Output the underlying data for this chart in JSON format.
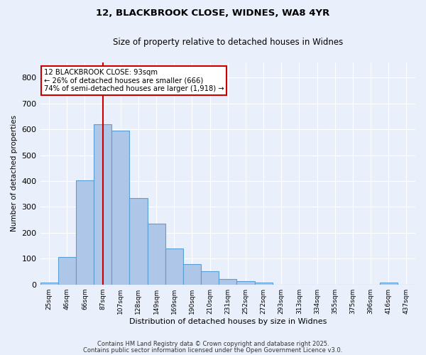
{
  "title1": "12, BLACKBROOK CLOSE, WIDNES, WA8 4YR",
  "title2": "Size of property relative to detached houses in Widnes",
  "xlabel": "Distribution of detached houses by size in Widnes",
  "ylabel": "Number of detached properties",
  "bar_labels": [
    "25sqm",
    "46sqm",
    "66sqm",
    "87sqm",
    "107sqm",
    "128sqm",
    "149sqm",
    "169sqm",
    "190sqm",
    "210sqm",
    "231sqm",
    "252sqm",
    "272sqm",
    "293sqm",
    "313sqm",
    "334sqm",
    "355sqm",
    "375sqm",
    "396sqm",
    "416sqm",
    "437sqm"
  ],
  "bar_values": [
    7,
    107,
    403,
    620,
    596,
    333,
    234,
    138,
    78,
    52,
    20,
    13,
    7,
    0,
    0,
    0,
    0,
    0,
    0,
    8,
    0
  ],
  "bar_color": "#aec6e8",
  "bar_edge_color": "#5a9fd4",
  "background_color": "#eaf0fb",
  "grid_color": "#ffffff",
  "vline_x": 3.0,
  "vline_color": "#cc0000",
  "annotation_text": "12 BLACKBROOK CLOSE: 93sqm\n← 26% of detached houses are smaller (666)\n74% of semi-detached houses are larger (1,918) →",
  "annotation_box_color": "#ffffff",
  "annotation_box_edge_color": "#cc0000",
  "ylim": [
    0,
    860
  ],
  "yticks": [
    0,
    100,
    200,
    300,
    400,
    500,
    600,
    700,
    800
  ],
  "footnote1": "Contains HM Land Registry data © Crown copyright and database right 2025.",
  "footnote2": "Contains public sector information licensed under the Open Government Licence v3.0."
}
